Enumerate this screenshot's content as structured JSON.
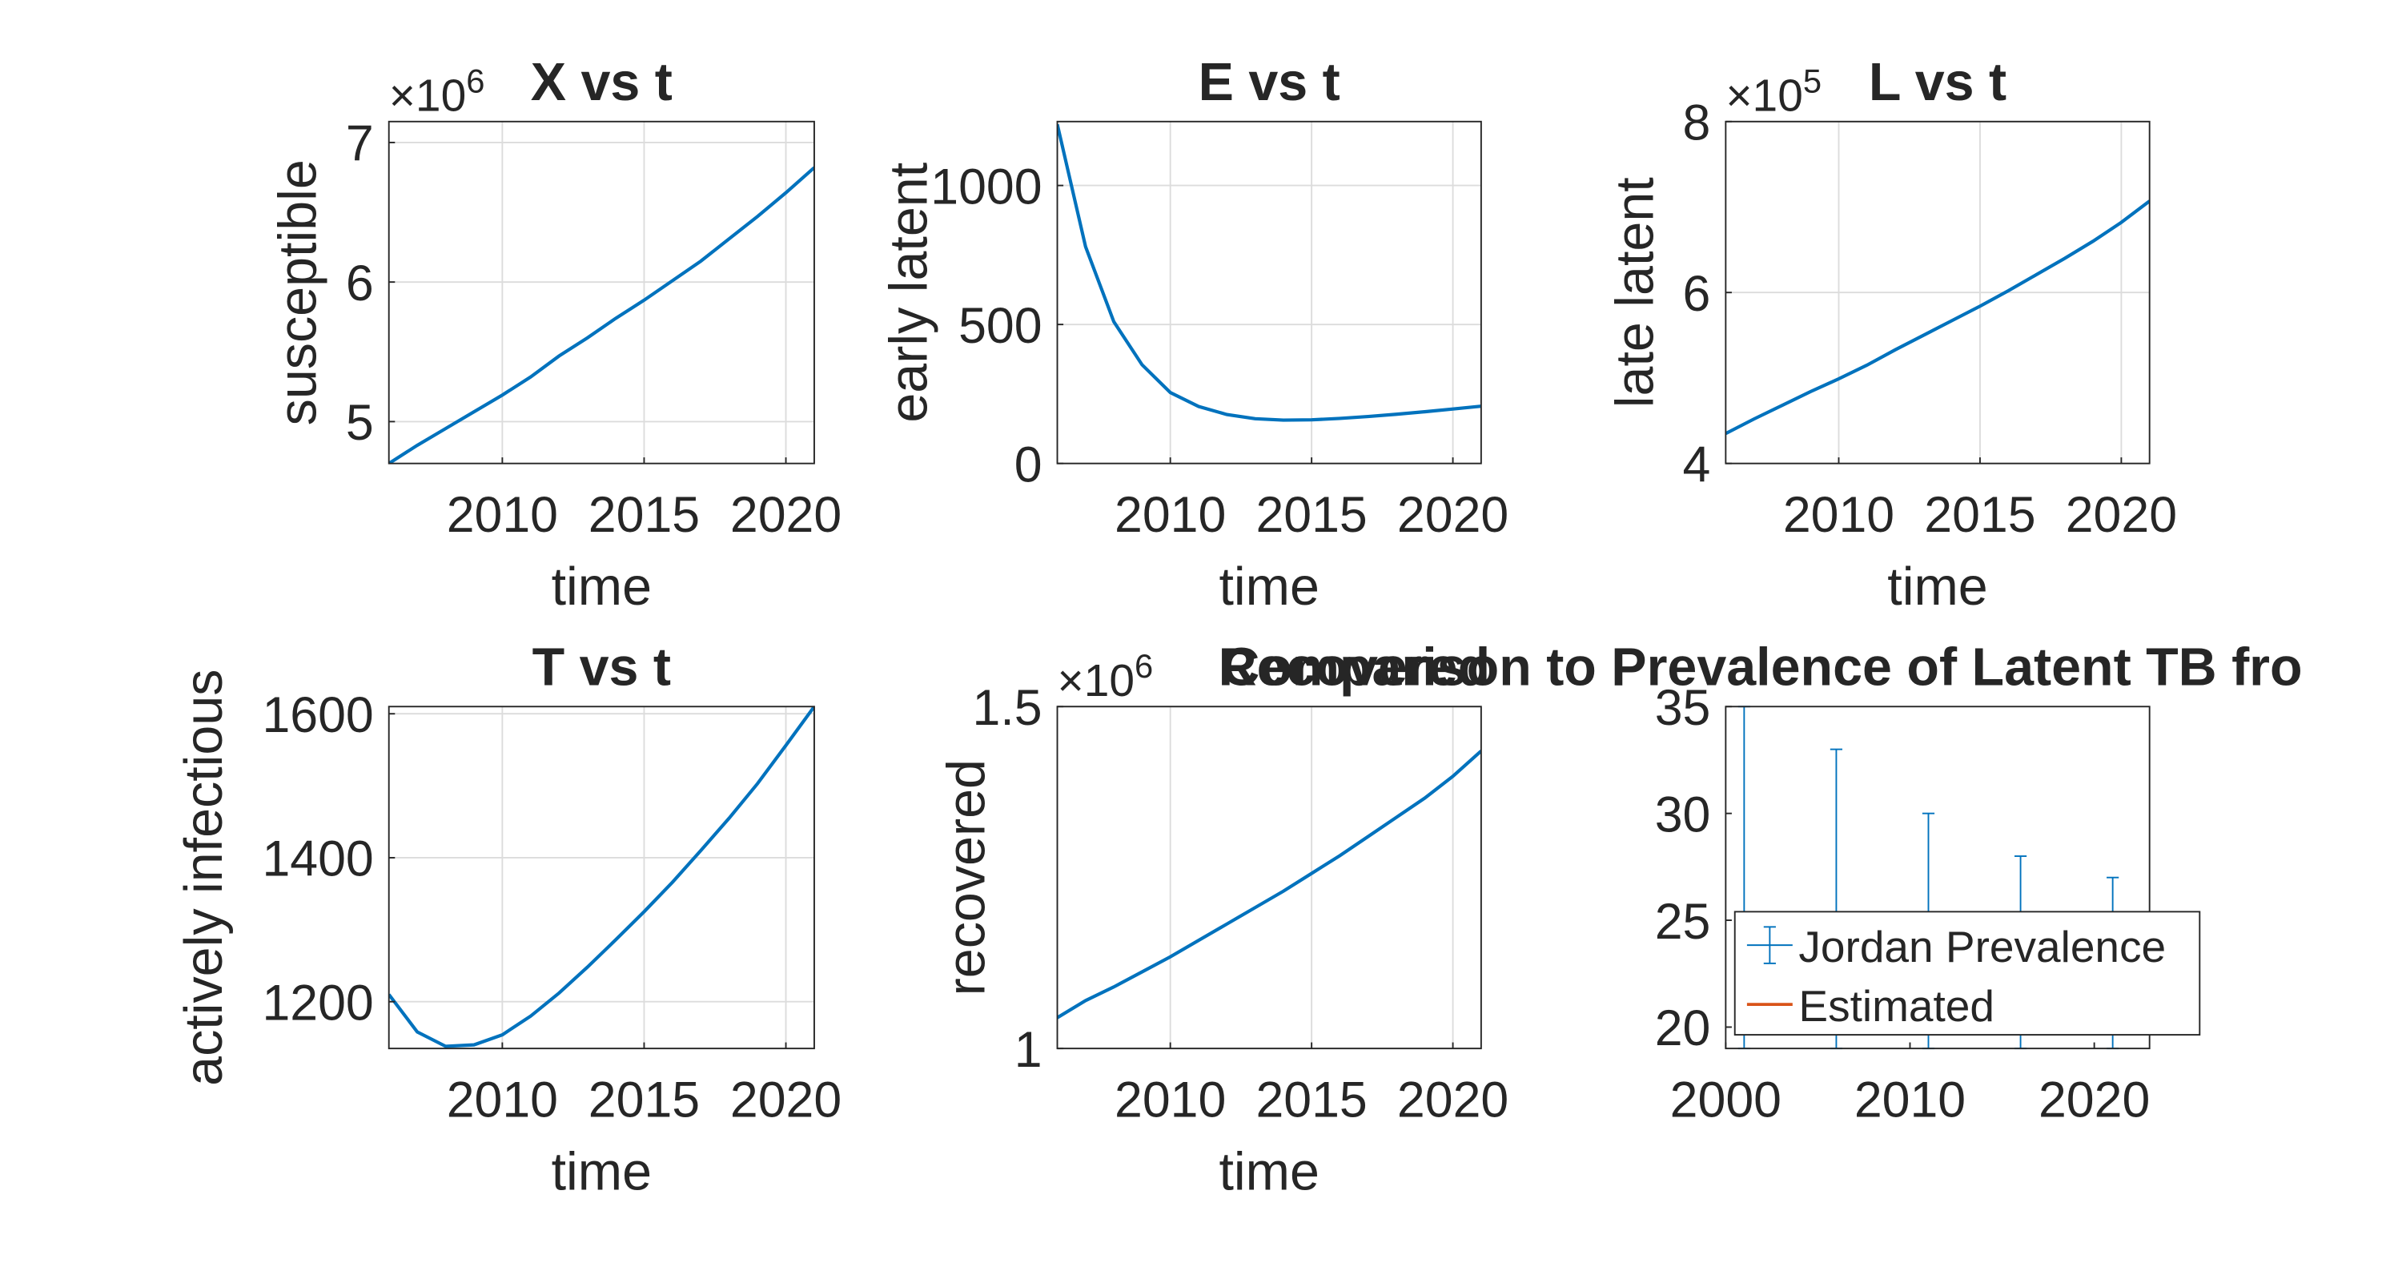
{
  "figure": {
    "colors": {
      "line": "#0072bd",
      "line2": "#d95319",
      "axis": "#262626",
      "grid": "#dcdcdc"
    }
  },
  "chart_data": [
    {
      "type": "line",
      "title": "X vs t",
      "xlabel": "time",
      "ylabel": "susceptible",
      "exponent_label": "×10",
      "exponent": "6",
      "xlim": [
        2006,
        2021
      ],
      "ylim": [
        4.7,
        7.15
      ],
      "xticks": [
        2010,
        2015,
        2020
      ],
      "yticks": [
        5,
        6,
        7
      ],
      "grid": true,
      "series": [
        {
          "x": [
            2006,
            2007,
            2008,
            2009,
            2010,
            2011,
            2012,
            2013,
            2014,
            2015,
            2016,
            2017,
            2018,
            2019,
            2020,
            2021
          ],
          "y": [
            4.7,
            4.83,
            4.95,
            5.07,
            5.19,
            5.32,
            5.47,
            5.6,
            5.74,
            5.87,
            6.01,
            6.15,
            6.31,
            6.47,
            6.64,
            6.82
          ]
        }
      ]
    },
    {
      "type": "line",
      "title": "E vs t",
      "xlabel": "time",
      "ylabel": "early latent",
      "xlim": [
        2006,
        2021
      ],
      "ylim": [
        0,
        1230
      ],
      "xticks": [
        2010,
        2015,
        2020
      ],
      "yticks": [
        0,
        500,
        1000
      ],
      "grid": true,
      "series": [
        {
          "x": [
            2006,
            2007,
            2008,
            2009,
            2010,
            2011,
            2012,
            2013,
            2014,
            2015,
            2016,
            2017,
            2018,
            2019,
            2020,
            2021
          ],
          "y": [
            1220,
            780,
            510,
            355,
            255,
            205,
            176,
            161,
            156,
            157,
            162,
            169,
            177,
            186,
            196,
            206
          ]
        }
      ]
    },
    {
      "type": "line",
      "title": "L vs t",
      "xlabel": "time",
      "ylabel": "late latent",
      "exponent_label": "×10",
      "exponent": "5",
      "xlim": [
        2006,
        2021
      ],
      "ylim": [
        4,
        8
      ],
      "xticks": [
        2010,
        2015,
        2020
      ],
      "yticks": [
        4,
        6,
        8
      ],
      "grid": true,
      "series": [
        {
          "x": [
            2006,
            2007,
            2008,
            2009,
            2010,
            2011,
            2012,
            2013,
            2014,
            2015,
            2016,
            2017,
            2018,
            2019,
            2020,
            2021
          ],
          "y": [
            4.35,
            4.52,
            4.68,
            4.84,
            4.99,
            5.15,
            5.33,
            5.5,
            5.67,
            5.84,
            6.02,
            6.21,
            6.4,
            6.6,
            6.82,
            7.07
          ]
        }
      ]
    },
    {
      "type": "line",
      "title": "T vs t",
      "xlabel": "time",
      "ylabel": "actively infectious",
      "xlim": [
        2006,
        2021
      ],
      "ylim": [
        1135,
        1610
      ],
      "xticks": [
        2010,
        2015,
        2020
      ],
      "yticks": [
        1200,
        1400,
        1600
      ],
      "grid": true,
      "series": [
        {
          "x": [
            2006,
            2007,
            2008,
            2009,
            2010,
            2011,
            2012,
            2013,
            2014,
            2015,
            2016,
            2017,
            2018,
            2019,
            2020,
            2021
          ],
          "y": [
            1210,
            1158,
            1138,
            1140,
            1154,
            1180,
            1212,
            1248,
            1286,
            1325,
            1366,
            1410,
            1455,
            1503,
            1556,
            1610
          ]
        }
      ]
    },
    {
      "type": "line",
      "title": "",
      "xlabel": "time",
      "ylabel": "recovered",
      "exponent_label": "×10",
      "exponent": "6",
      "xlim": [
        2006,
        2021
      ],
      "ylim": [
        1.0,
        1.5
      ],
      "xticks": [
        2010,
        2015,
        2020
      ],
      "yticks": [
        1,
        1.5
      ],
      "grid": true,
      "series": [
        {
          "x": [
            2006,
            2007,
            2008,
            2009,
            2010,
            2011,
            2012,
            2013,
            2014,
            2015,
            2016,
            2017,
            2018,
            2019,
            2020,
            2021
          ],
          "y": [
            1.045,
            1.07,
            1.09,
            1.112,
            1.134,
            1.158,
            1.182,
            1.206,
            1.23,
            1.256,
            1.282,
            1.31,
            1.338,
            1.366,
            1.398,
            1.435
          ]
        }
      ]
    },
    {
      "type": "line",
      "title": "Comparison to Prevalence of Latent TB fro",
      "title_overlap": "Recovered",
      "xlabel": "",
      "ylabel": "",
      "xlim": [
        2000,
        2023
      ],
      "ylim": [
        19,
        35
      ],
      "xticks": [
        2000,
        2010,
        2020
      ],
      "yticks": [
        20,
        25,
        30,
        35
      ],
      "grid": false,
      "legend": [
        "Jordan Prevalence",
        "Estimated"
      ],
      "legend_location": "bottom-right",
      "errorbars": {
        "name": "Jordan Prevalence",
        "x": [
          2001,
          2006,
          2011,
          2016,
          2021
        ],
        "upper": [
          35,
          33,
          30,
          28,
          27
        ],
        "lower": [
          19,
          19,
          19,
          19,
          19
        ]
      }
    }
  ]
}
